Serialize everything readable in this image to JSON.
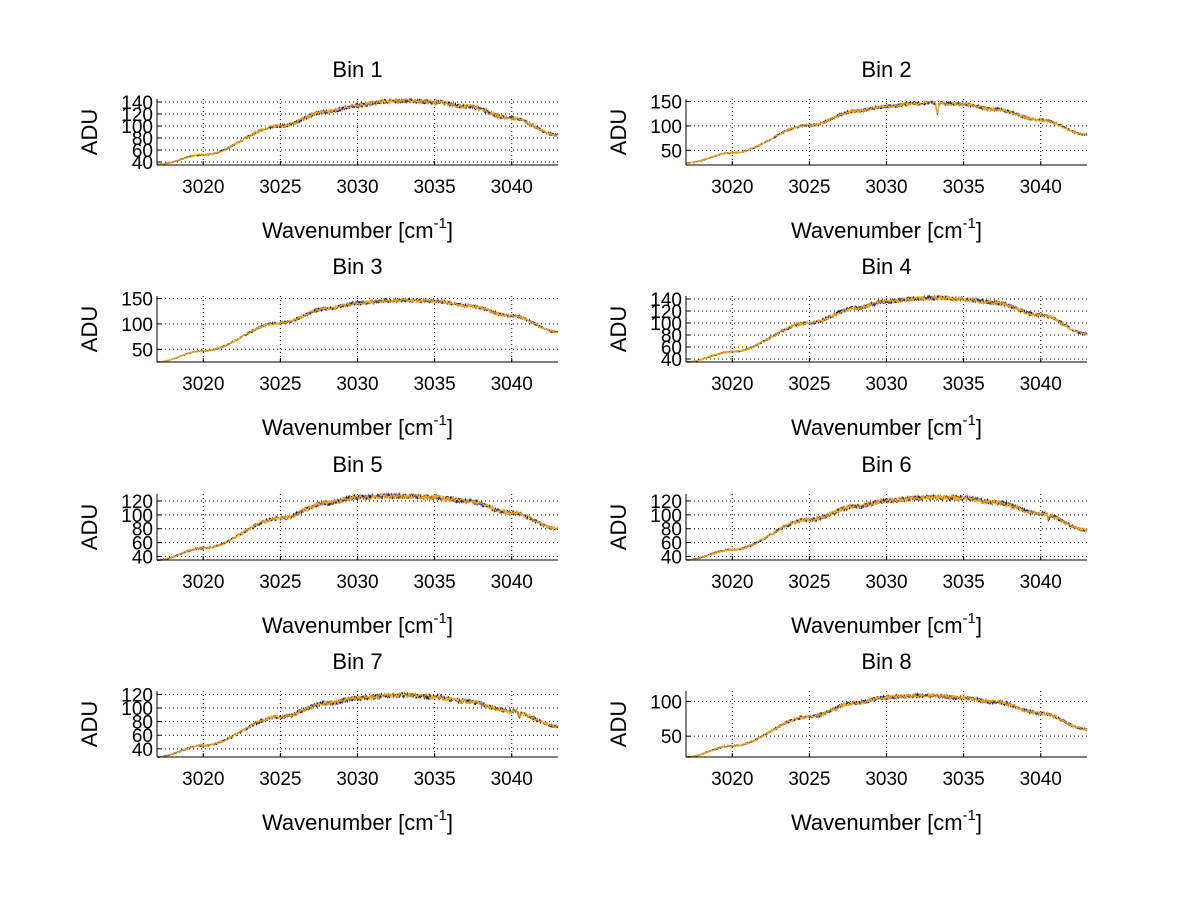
{
  "chart_data": [
    {
      "type": "line",
      "title": "Bin 1",
      "xlabel_main": "Wavenumber [cm",
      "xlabel_sup": "-1",
      "xlabel_end": "]",
      "ylabel": "ADU",
      "xlim": [
        3017,
        3043
      ],
      "ylim": [
        35,
        145
      ],
      "xticks": [
        3020,
        3025,
        3030,
        3035,
        3040
      ],
      "yticks": [
        40,
        60,
        80,
        100,
        120,
        140
      ],
      "ytick_labels": [
        "40",
        "60",
        "80",
        "100",
        "120",
        "140"
      ],
      "series": [
        {
          "name": "black",
          "color": "#000000"
        },
        {
          "name": "blue",
          "color": "#1f3fbf"
        },
        {
          "name": "orange",
          "color": "#ffa500"
        }
      ],
      "x": [
        3017,
        3020,
        3025,
        3028,
        3030,
        3032,
        3033,
        3035,
        3037,
        3040,
        3043
      ],
      "y": [
        36,
        52,
        100,
        124,
        134,
        141,
        142,
        140,
        133,
        113,
        85
      ],
      "noise": 3,
      "dip": null
    },
    {
      "type": "line",
      "title": "Bin 2",
      "xlabel_main": "Wavenumber [cm",
      "xlabel_sup": "-1",
      "xlabel_end": "]",
      "ylabel": "ADU",
      "xlim": [
        3017,
        3043
      ],
      "ylim": [
        20,
        155
      ],
      "xticks": [
        3020,
        3025,
        3030,
        3035,
        3040
      ],
      "yticks": [
        50,
        100,
        150
      ],
      "ytick_labels": [
        "50",
        "100",
        "150"
      ],
      "series": [
        {
          "name": "black",
          "color": "#000000"
        },
        {
          "name": "blue",
          "color": "#1f3fbf"
        },
        {
          "name": "orange",
          "color": "#ffa500"
        }
      ],
      "x": [
        3017,
        3020,
        3025,
        3028,
        3030,
        3032,
        3033,
        3035,
        3037,
        3040,
        3043
      ],
      "y": [
        24,
        45,
        101,
        130,
        140,
        146,
        147,
        144,
        134,
        112,
        82
      ],
      "noise": 3,
      "dip": {
        "x": 3033.3,
        "depth": 25
      }
    },
    {
      "type": "line",
      "title": "Bin 3",
      "xlabel_main": "Wavenumber [cm",
      "xlabel_sup": "-1",
      "xlabel_end": "]",
      "ylabel": "ADU",
      "xlim": [
        3017,
        3043
      ],
      "ylim": [
        25,
        155
      ],
      "xticks": [
        3020,
        3025,
        3030,
        3035,
        3040
      ],
      "yticks": [
        50,
        100,
        150
      ],
      "ytick_labels": [
        "50",
        "100",
        "150"
      ],
      "series": [
        {
          "name": "black",
          "color": "#000000"
        },
        {
          "name": "blue",
          "color": "#1f3fbf"
        },
        {
          "name": "orange",
          "color": "#ffa500"
        }
      ],
      "x": [
        3017,
        3020,
        3025,
        3028,
        3030,
        3032,
        3033,
        3035,
        3037,
        3040,
        3043
      ],
      "y": [
        25,
        47,
        102,
        130,
        141,
        146,
        147,
        145,
        137,
        116,
        84
      ],
      "noise": 3,
      "dip": null
    },
    {
      "type": "line",
      "title": "Bin 4",
      "xlabel_main": "Wavenumber [cm",
      "xlabel_sup": "-1",
      "xlabel_end": "]",
      "ylabel": "ADU",
      "xlim": [
        3017,
        3043
      ],
      "ylim": [
        35,
        145
      ],
      "xticks": [
        3020,
        3025,
        3030,
        3035,
        3040
      ],
      "yticks": [
        40,
        60,
        80,
        100,
        120,
        140
      ],
      "ytick_labels": [
        "40",
        "60",
        "80",
        "100",
        "120",
        "140"
      ],
      "series": [
        {
          "name": "black",
          "color": "#000000"
        },
        {
          "name": "blue",
          "color": "#1f3fbf"
        },
        {
          "name": "orange",
          "color": "#ffa500"
        }
      ],
      "x": [
        3017,
        3020,
        3025,
        3028,
        3030,
        3032,
        3033,
        3035,
        3037,
        3040,
        3043
      ],
      "y": [
        35,
        52,
        100,
        125,
        136,
        141,
        142,
        140,
        134,
        113,
        82
      ],
      "noise": 3,
      "dip": null
    },
    {
      "type": "line",
      "title": "Bin 5",
      "xlabel_main": "Wavenumber [cm",
      "xlabel_sup": "-1",
      "xlabel_end": "]",
      "ylabel": "ADU",
      "xlim": [
        3017,
        3043
      ],
      "ylim": [
        35,
        130
      ],
      "xticks": [
        3020,
        3025,
        3030,
        3035,
        3040
      ],
      "yticks": [
        40,
        60,
        80,
        100,
        120
      ],
      "ytick_labels": [
        "40",
        "60",
        "80",
        "100",
        "120"
      ],
      "series": [
        {
          "name": "black",
          "color": "#000000"
        },
        {
          "name": "blue",
          "color": "#1f3fbf"
        },
        {
          "name": "orange",
          "color": "#ffa500"
        }
      ],
      "x": [
        3017,
        3020,
        3025,
        3028,
        3030,
        3032,
        3033,
        3035,
        3037,
        3040,
        3043
      ],
      "y": [
        35,
        52,
        95,
        117,
        125,
        127,
        127,
        125,
        120,
        103,
        80
      ],
      "noise": 3,
      "dip": null
    },
    {
      "type": "line",
      "title": "Bin 6",
      "xlabel_main": "Wavenumber [cm",
      "xlabel_sup": "-1",
      "xlabel_end": "]",
      "ylabel": "ADU",
      "xlim": [
        3017,
        3043
      ],
      "ylim": [
        35,
        130
      ],
      "xticks": [
        3020,
        3025,
        3030,
        3035,
        3040
      ],
      "yticks": [
        40,
        60,
        80,
        100,
        120
      ],
      "ytick_labels": [
        "40",
        "60",
        "80",
        "100",
        "120"
      ],
      "series": [
        {
          "name": "black",
          "color": "#000000"
        },
        {
          "name": "blue",
          "color": "#1f3fbf"
        },
        {
          "name": "orange",
          "color": "#ffa500"
        }
      ],
      "x": [
        3017,
        3020,
        3025,
        3028,
        3030,
        3032,
        3033,
        3035,
        3037,
        3040,
        3043
      ],
      "y": [
        35,
        50,
        93,
        112,
        120,
        124,
        125,
        124,
        118,
        102,
        78
      ],
      "noise": 3,
      "dip": {
        "x": 3040.5,
        "depth": 8
      }
    },
    {
      "type": "line",
      "title": "Bin 7",
      "xlabel_main": "Wavenumber [cm",
      "xlabel_sup": "-1",
      "xlabel_end": "]",
      "ylabel": "ADU",
      "xlim": [
        3017,
        3043
      ],
      "ylim": [
        28,
        125
      ],
      "xticks": [
        3020,
        3025,
        3030,
        3035,
        3040
      ],
      "yticks": [
        40,
        60,
        80,
        100,
        120
      ],
      "ytick_labels": [
        "40",
        "60",
        "80",
        "100",
        "120"
      ],
      "series": [
        {
          "name": "black",
          "color": "#000000"
        },
        {
          "name": "blue",
          "color": "#1f3fbf"
        },
        {
          "name": "orange",
          "color": "#ffa500"
        }
      ],
      "x": [
        3017,
        3020,
        3025,
        3028,
        3030,
        3032,
        3033,
        3035,
        3037,
        3040,
        3043
      ],
      "y": [
        28,
        45,
        87,
        107,
        114,
        118,
        119,
        116,
        110,
        95,
        73
      ],
      "noise": 3,
      "dip": {
        "x": 3040.5,
        "depth": 7
      }
    },
    {
      "type": "line",
      "title": "Bin 8",
      "xlabel_main": "Wavenumber [cm",
      "xlabel_sup": "-1",
      "xlabel_end": "]",
      "ylabel": "ADU",
      "xlim": [
        3017,
        3043
      ],
      "ylim": [
        20,
        115
      ],
      "xticks": [
        3020,
        3025,
        3030,
        3035,
        3040
      ],
      "yticks": [
        50,
        100
      ],
      "ytick_labels": [
        "50",
        "100"
      ],
      "series": [
        {
          "name": "black",
          "color": "#000000"
        },
        {
          "name": "blue",
          "color": "#1f3fbf"
        },
        {
          "name": "orange",
          "color": "#ffa500"
        }
      ],
      "x": [
        3017,
        3020,
        3025,
        3028,
        3030,
        3032,
        3033,
        3035,
        3037,
        3040,
        3043
      ],
      "y": [
        20,
        36,
        78,
        98,
        106,
        108,
        108,
        105,
        99,
        83,
        60
      ],
      "noise": 2.5,
      "dip": null
    }
  ]
}
